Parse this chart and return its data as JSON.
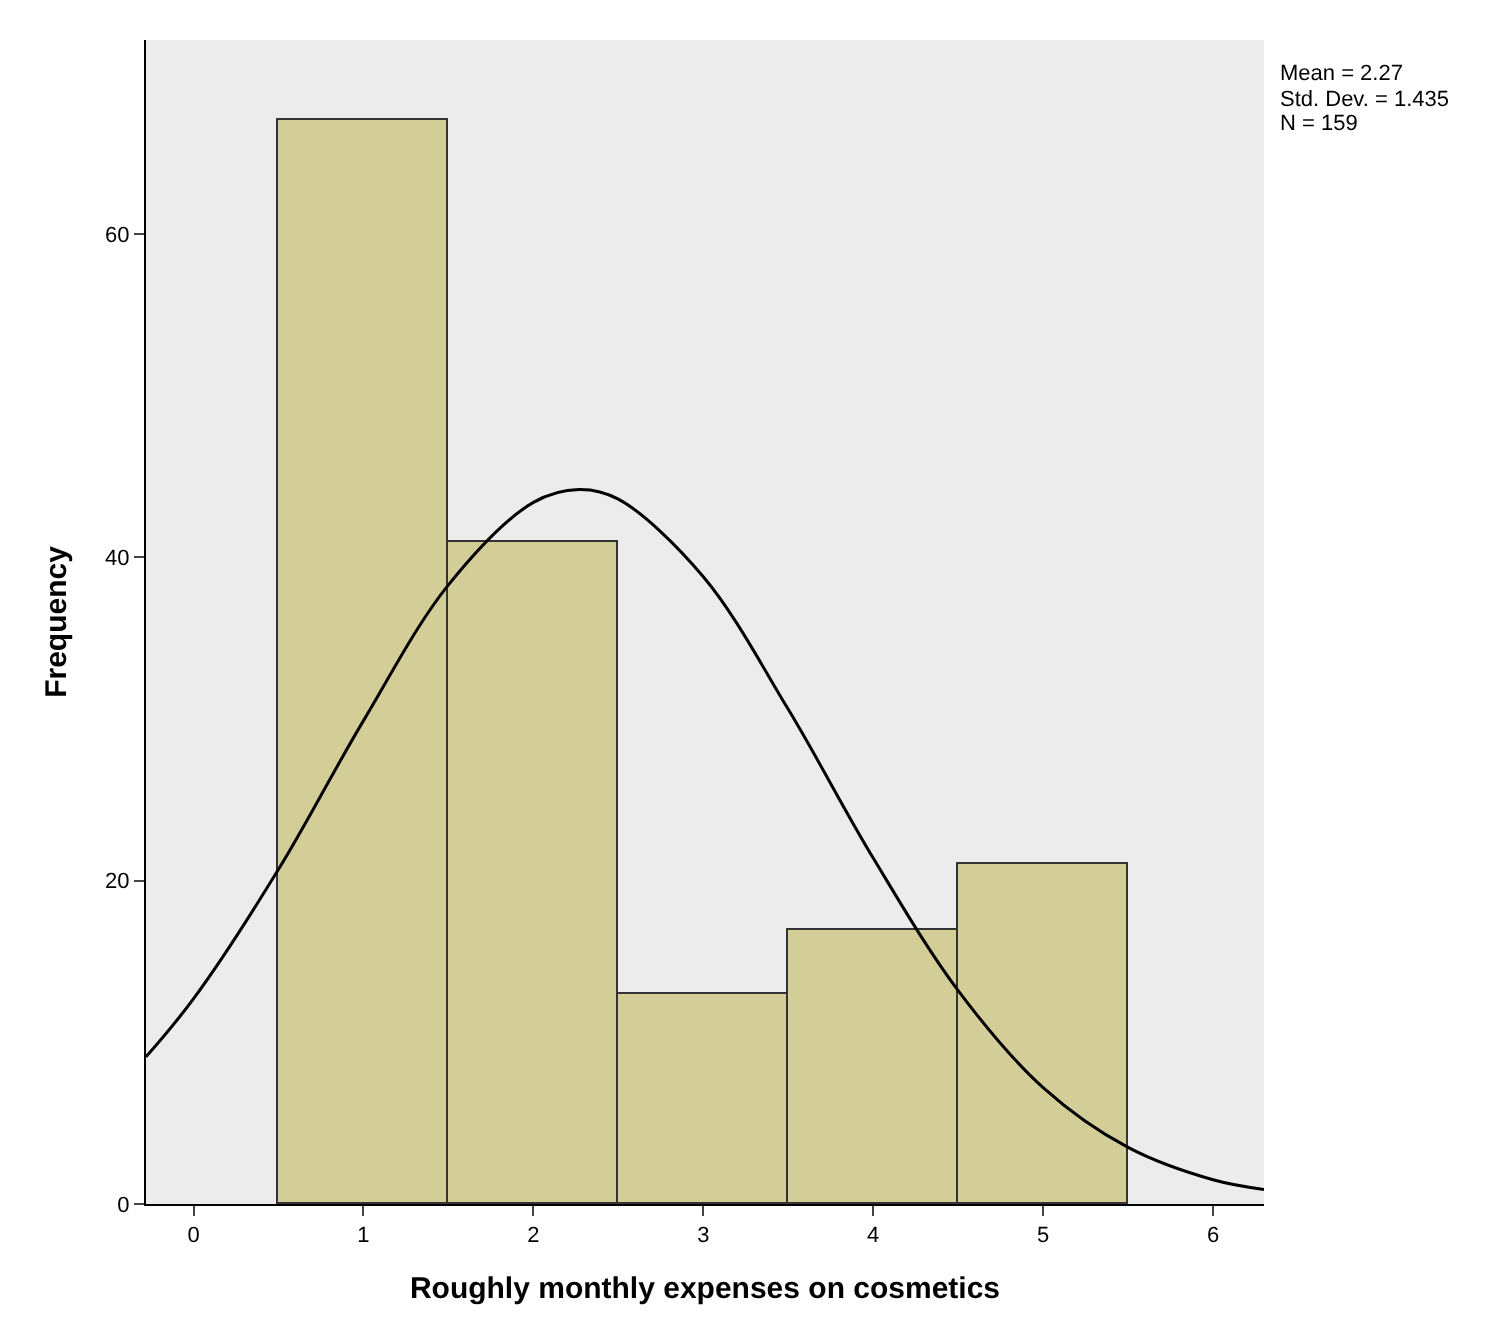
{
  "chart_data": {
    "type": "histogram",
    "xlabel": "Roughly monthly expenses on cosmetics",
    "ylabel": "Frequency",
    "bins": [
      0.5,
      1.5,
      2.5,
      3.5,
      4.5,
      5.5
    ],
    "values": [
      67,
      41,
      13,
      17,
      21
    ],
    "color": "#d3cd98",
    "series": [
      {
        "type": "line",
        "color": "#000000",
        "x": [
          -0.28,
          0,
          0.5,
          1,
          1.5,
          2,
          2.27,
          2.5,
          3,
          3.5,
          4,
          4.5,
          5,
          5.5,
          6,
          6.3
        ],
        "values": [
          9.1,
          12.7,
          20.7,
          29.9,
          38.3,
          43.4,
          44.2,
          43.6,
          38.8,
          30.6,
          21.4,
          13.2,
          7.2,
          3.5,
          1.5,
          0.9
        ]
      }
    ],
    "xlim": [
      -0.28,
      6.3
    ],
    "xticks": [
      0,
      1,
      2,
      3,
      4,
      5,
      6
    ],
    "ylim": [
      0,
      72
    ],
    "yticks": [
      0,
      20,
      40,
      60
    ],
    "grid": false,
    "marker": "none",
    "line_style": "solid",
    "annotations": [
      "Mean = 2.27",
      "Std. Dev. = 1.435",
      "N = 159"
    ]
  }
}
